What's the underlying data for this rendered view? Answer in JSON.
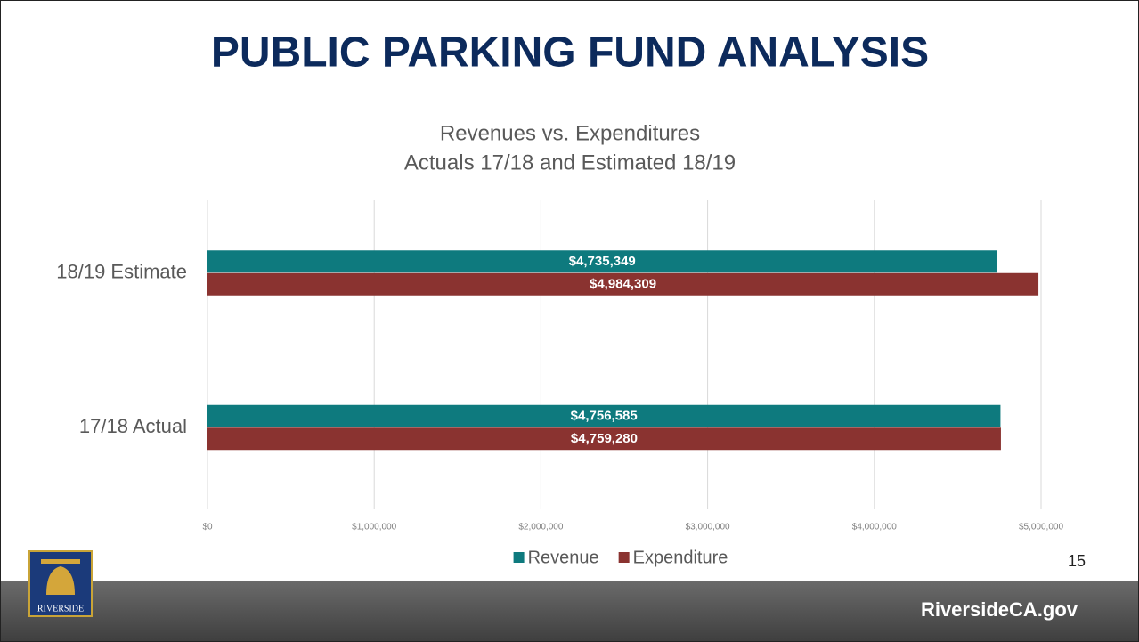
{
  "slide_title": "PUBLIC PARKING FUND ANALYSIS",
  "page_number": "15",
  "footer": "RiversideCA.gov",
  "logo_text": "RIVERSIDE",
  "chart_data": {
    "type": "bar",
    "orientation": "horizontal",
    "title": [
      "Revenues vs. Expenditures",
      "Actuals 17/18 and Estimated 18/19"
    ],
    "categories": [
      "18/19 Estimate",
      "17/18 Actual"
    ],
    "series": [
      {
        "name": "Revenue",
        "color": "#0e7a7e",
        "values": [
          4735349,
          4756585
        ],
        "value_labels": [
          "$4,735,349",
          "$4,756,585"
        ]
      },
      {
        "name": "Expenditure",
        "color": "#8a3330",
        "values": [
          4984309,
          4759280
        ],
        "value_labels": [
          "$4,984,309",
          "$4,759,280"
        ]
      }
    ],
    "xlim": [
      0,
      5000000
    ],
    "xticks": [
      {
        "value": 0,
        "label": "$0"
      },
      {
        "value": 1000000,
        "label": "$1,000,000"
      },
      {
        "value": 2000000,
        "label": "$2,000,000"
      },
      {
        "value": 3000000,
        "label": "$3,000,000"
      },
      {
        "value": 4000000,
        "label": "$4,000,000"
      },
      {
        "value": 5000000,
        "label": "$5,000,000"
      }
    ],
    "grid": true,
    "legend": "bottom"
  }
}
